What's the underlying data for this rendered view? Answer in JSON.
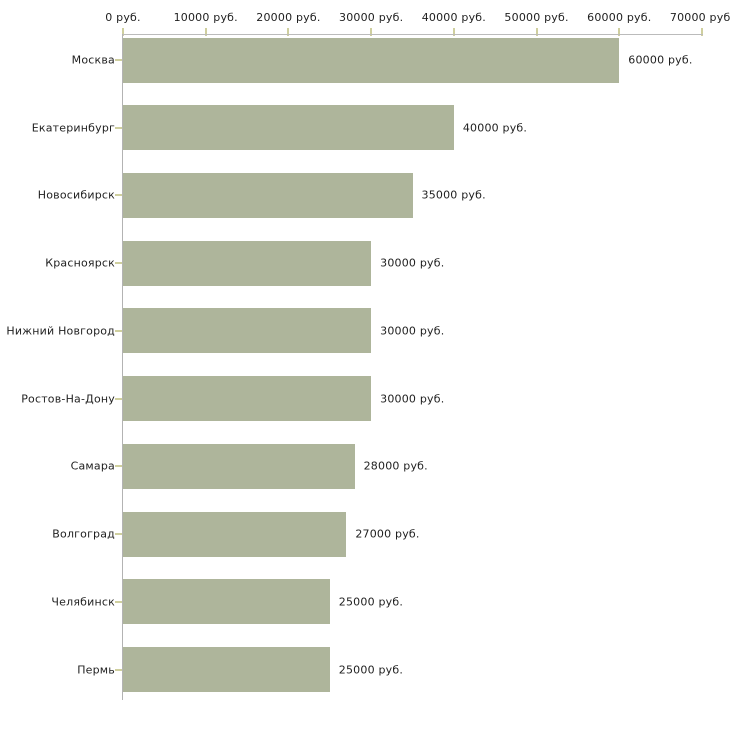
{
  "chart_data": {
    "type": "bar",
    "orientation": "horizontal",
    "title": "",
    "xlabel": "",
    "ylabel": "",
    "unit": "руб.",
    "xlim": [
      0,
      70000
    ],
    "grid": false,
    "legend": null,
    "categories": [
      "Москва",
      "Екатеринбург",
      "Новосибирск",
      "Красноярск",
      "Нижний Новгород",
      "Ростов-На-Дону",
      "Самара",
      "Волгоград",
      "Челябинск",
      "Пермь"
    ],
    "values": [
      60000,
      40000,
      35000,
      30000,
      30000,
      30000,
      28000,
      27000,
      25000,
      25000
    ],
    "bar_labels": [
      "60000 руб.",
      "40000 руб.",
      "35000 руб.",
      "30000 руб.",
      "30000 руб.",
      "30000 руб.",
      "28000 руб.",
      "27000 руб.",
      "25000 руб.",
      "25000 руб."
    ],
    "x_ticks": [
      {
        "value": 0,
        "label": "0 руб."
      },
      {
        "value": 10000,
        "label": "10000 руб."
      },
      {
        "value": 20000,
        "label": "20000 руб."
      },
      {
        "value": 30000,
        "label": "30000 руб."
      },
      {
        "value": 40000,
        "label": "40000 руб."
      },
      {
        "value": 50000,
        "label": "50000 руб."
      },
      {
        "value": 60000,
        "label": "60000 руб."
      },
      {
        "value": 70000,
        "label": "70000 руб."
      }
    ],
    "bar_color": "#aeb59b",
    "axis_line_color": "#b8b8b8",
    "tick_mark_color": "#cfcf9e",
    "text_color": "#1f1f1f"
  }
}
